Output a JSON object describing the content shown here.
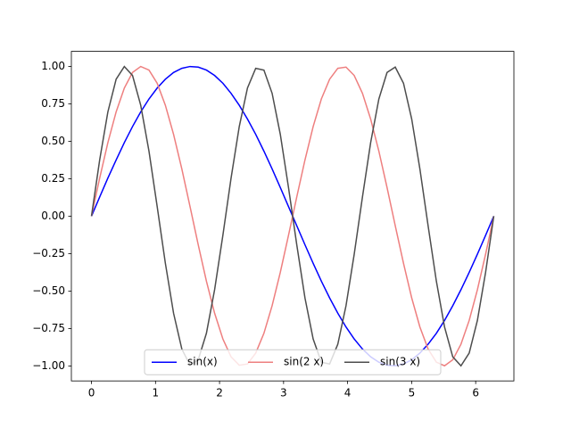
{
  "chart_data": {
    "type": "line",
    "x": [
      0,
      0.128,
      0.256,
      0.385,
      0.513,
      0.641,
      0.769,
      0.898,
      1.026,
      1.154,
      1.282,
      1.411,
      1.539,
      1.667,
      1.795,
      1.923,
      2.052,
      2.18,
      2.308,
      2.436,
      2.565,
      2.693,
      2.821,
      2.949,
      3.077,
      3.206,
      3.334,
      3.462,
      3.59,
      3.719,
      3.847,
      3.975,
      4.103,
      4.232,
      4.36,
      4.488,
      4.616,
      4.744,
      4.873,
      5.001,
      5.129,
      5.257,
      5.386,
      5.514,
      5.642,
      5.77,
      5.899,
      6.027,
      6.155,
      6.283
    ],
    "series": [
      {
        "name": "sin(x)",
        "color": "#0000ff",
        "values": [
          0,
          0.128,
          0.254,
          0.375,
          0.491,
          0.598,
          0.696,
          0.782,
          0.855,
          0.914,
          0.959,
          0.987,
          0.999,
          0.995,
          0.975,
          0.939,
          0.887,
          0.82,
          0.74,
          0.648,
          0.546,
          0.434,
          0.315,
          0.191,
          0.064,
          -0.064,
          -0.191,
          -0.315,
          -0.434,
          -0.546,
          -0.648,
          -0.74,
          -0.82,
          -0.887,
          -0.939,
          -0.975,
          -0.995,
          -0.999,
          -0.987,
          -0.959,
          -0.914,
          -0.855,
          -0.782,
          -0.696,
          -0.598,
          -0.491,
          -0.375,
          -0.254,
          -0.128,
          0
        ]
      },
      {
        "name": "sin(2 x)",
        "color": "#ee7f7f",
        "values": [
          0,
          0.254,
          0.491,
          0.696,
          0.855,
          0.959,
          0.999,
          0.975,
          0.887,
          0.74,
          0.546,
          0.315,
          0.064,
          -0.191,
          -0.434,
          -0.648,
          -0.82,
          -0.939,
          -0.995,
          -0.987,
          -0.914,
          -0.782,
          -0.598,
          -0.375,
          -0.128,
          0.128,
          0.375,
          0.598,
          0.782,
          0.914,
          0.987,
          0.995,
          0.939,
          0.82,
          0.648,
          0.434,
          0.191,
          -0.064,
          -0.315,
          -0.546,
          -0.74,
          -0.887,
          -0.975,
          -0.999,
          -0.959,
          -0.855,
          -0.696,
          -0.491,
          -0.254,
          0
        ]
      },
      {
        "name": "sin(3 x)",
        "color": "#4d4d4d",
        "values": [
          0,
          0.375,
          0.696,
          0.914,
          0.999,
          0.939,
          0.74,
          0.434,
          0.064,
          -0.315,
          -0.648,
          -0.887,
          -0.995,
          -0.959,
          -0.782,
          -0.491,
          -0.128,
          0.254,
          0.598,
          0.855,
          0.987,
          0.975,
          0.82,
          0.546,
          0.191,
          -0.191,
          -0.546,
          -0.82,
          -0.975,
          -0.987,
          -0.855,
          -0.598,
          -0.254,
          0.128,
          0.491,
          0.782,
          0.959,
          0.995,
          0.887,
          0.648,
          0.315,
          -0.064,
          -0.434,
          -0.74,
          -0.939,
          -0.999,
          -0.914,
          -0.696,
          -0.375,
          0
        ]
      }
    ],
    "xlim": [
      -0.314,
      6.597
    ],
    "ylim": [
      -1.1,
      1.1
    ],
    "xticks": [
      0,
      1,
      2,
      3,
      4,
      5,
      6
    ],
    "yticks": [
      {
        "value": -1,
        "label": "−1.00"
      },
      {
        "value": -0.75,
        "label": "−0.75"
      },
      {
        "value": -0.5,
        "label": "−0.50"
      },
      {
        "value": -0.25,
        "label": "−0.25"
      },
      {
        "value": 0,
        "label": "0.00"
      },
      {
        "value": 0.25,
        "label": "0.25"
      },
      {
        "value": 0.5,
        "label": "0.50"
      },
      {
        "value": 0.75,
        "label": "0.75"
      },
      {
        "value": 1,
        "label": "1.00"
      }
    ],
    "legend": {
      "loc": "lower center",
      "ncol": 3
    }
  }
}
